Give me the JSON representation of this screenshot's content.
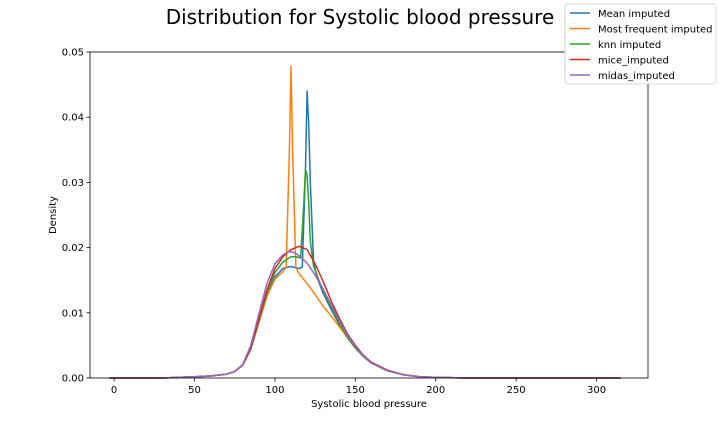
{
  "chart_data": {
    "type": "line",
    "title": "Distribution for Systolic blood pressure",
    "xlabel": "Systolic blood pressure",
    "ylabel": "Density",
    "xlim": [
      -15,
      332
    ],
    "ylim": [
      0,
      0.05
    ],
    "x_ticks": [
      0,
      50,
      100,
      150,
      200,
      250,
      300
    ],
    "y_ticks": [
      0.0,
      0.01,
      0.02,
      0.03,
      0.04,
      0.05
    ],
    "x_tick_labels": [
      "0",
      "50",
      "100",
      "150",
      "200",
      "250",
      "300"
    ],
    "y_tick_labels": [
      "0.00",
      "0.01",
      "0.02",
      "0.03",
      "0.04",
      "0.05"
    ],
    "grid": false,
    "legend_position": "top-right",
    "series": [
      {
        "name": "Mean imputed",
        "color": "#1f77b4",
        "x": [
          -3,
          30,
          50,
          60,
          70,
          75,
          80,
          85,
          90,
          95,
          100,
          105,
          110,
          115,
          117,
          119,
          120,
          121,
          122,
          124,
          126,
          130,
          135,
          140,
          145,
          150,
          155,
          160,
          170,
          180,
          190,
          200,
          220,
          250,
          280,
          315
        ],
        "y": [
          0.0,
          0.0,
          0.0002,
          0.0003,
          0.0006,
          0.001,
          0.002,
          0.0045,
          0.0085,
          0.0125,
          0.0155,
          0.0168,
          0.0171,
          0.0168,
          0.017,
          0.032,
          0.044,
          0.039,
          0.03,
          0.018,
          0.0155,
          0.013,
          0.0105,
          0.0082,
          0.0062,
          0.0046,
          0.0033,
          0.0023,
          0.0011,
          0.0005,
          0.0002,
          0.0001,
          0.0,
          0.0,
          0.0,
          0.0
        ]
      },
      {
        "name": "Most frequent imputed",
        "color": "#ff7f0e",
        "x": [
          -3,
          30,
          50,
          60,
          70,
          75,
          80,
          85,
          90,
          95,
          100,
          105,
          107,
          109,
          110,
          111,
          113,
          115,
          120,
          125,
          130,
          135,
          140,
          145,
          150,
          155,
          160,
          170,
          180,
          190,
          200,
          220,
          250,
          280,
          315
        ],
        "y": [
          0.0,
          0.0,
          0.0002,
          0.0003,
          0.0006,
          0.001,
          0.002,
          0.0045,
          0.0085,
          0.0125,
          0.0152,
          0.0163,
          0.017,
          0.035,
          0.0478,
          0.035,
          0.017,
          0.016,
          0.0145,
          0.0128,
          0.011,
          0.0095,
          0.0079,
          0.0062,
          0.0046,
          0.0033,
          0.0023,
          0.0011,
          0.0005,
          0.0002,
          0.0001,
          0.0,
          0.0,
          0.0,
          0.0
        ]
      },
      {
        "name": "knn imputed",
        "color": "#2ca02c",
        "x": [
          -3,
          30,
          50,
          60,
          70,
          75,
          80,
          85,
          90,
          95,
          100,
          105,
          110,
          113,
          116,
          118,
          119,
          120,
          121,
          122,
          124,
          127,
          130,
          135,
          140,
          145,
          150,
          155,
          160,
          170,
          180,
          190,
          200,
          220,
          250,
          280,
          315
        ],
        "y": [
          0.0,
          0.0,
          0.0002,
          0.0003,
          0.0006,
          0.001,
          0.002,
          0.0045,
          0.0088,
          0.013,
          0.0162,
          0.0178,
          0.0186,
          0.0186,
          0.0184,
          0.027,
          0.032,
          0.031,
          0.027,
          0.021,
          0.0172,
          0.0152,
          0.0134,
          0.0108,
          0.0084,
          0.0063,
          0.0046,
          0.0033,
          0.0023,
          0.0011,
          0.0005,
          0.0002,
          0.0001,
          0.0,
          0.0,
          0.0,
          0.0
        ]
      },
      {
        "name": "mice_imputed",
        "color": "#d62728",
        "x": [
          -3,
          30,
          50,
          60,
          70,
          75,
          80,
          85,
          90,
          95,
          100,
          105,
          110,
          115,
          120,
          125,
          130,
          135,
          140,
          145,
          150,
          155,
          160,
          170,
          180,
          190,
          200,
          220,
          250,
          280,
          315
        ],
        "y": [
          0.0,
          0.0,
          0.0002,
          0.0003,
          0.0006,
          0.001,
          0.002,
          0.0045,
          0.009,
          0.0135,
          0.0168,
          0.0186,
          0.0197,
          0.0202,
          0.0197,
          0.0175,
          0.0148,
          0.0118,
          0.0092,
          0.0068,
          0.005,
          0.0035,
          0.0024,
          0.0012,
          0.0005,
          0.0002,
          0.0001,
          0.0,
          0.0,
          0.0,
          0.0
        ]
      },
      {
        "name": "midas_imputed",
        "color": "#9467bd",
        "x": [
          -3,
          30,
          50,
          60,
          70,
          75,
          80,
          85,
          90,
          95,
          100,
          105,
          108,
          110,
          113,
          116,
          120,
          125,
          130,
          135,
          140,
          145,
          150,
          155,
          160,
          170,
          180,
          190,
          200,
          220,
          250,
          280,
          315
        ],
        "y": [
          0.0,
          0.0,
          0.0002,
          0.0003,
          0.0006,
          0.001,
          0.0021,
          0.005,
          0.0098,
          0.0145,
          0.0175,
          0.0189,
          0.0193,
          0.0194,
          0.0191,
          0.0186,
          0.0176,
          0.0158,
          0.0136,
          0.0112,
          0.0088,
          0.0066,
          0.0048,
          0.0034,
          0.0023,
          0.0011,
          0.0005,
          0.0002,
          0.0001,
          0.0,
          0.0,
          0.0,
          0.0
        ]
      }
    ]
  }
}
